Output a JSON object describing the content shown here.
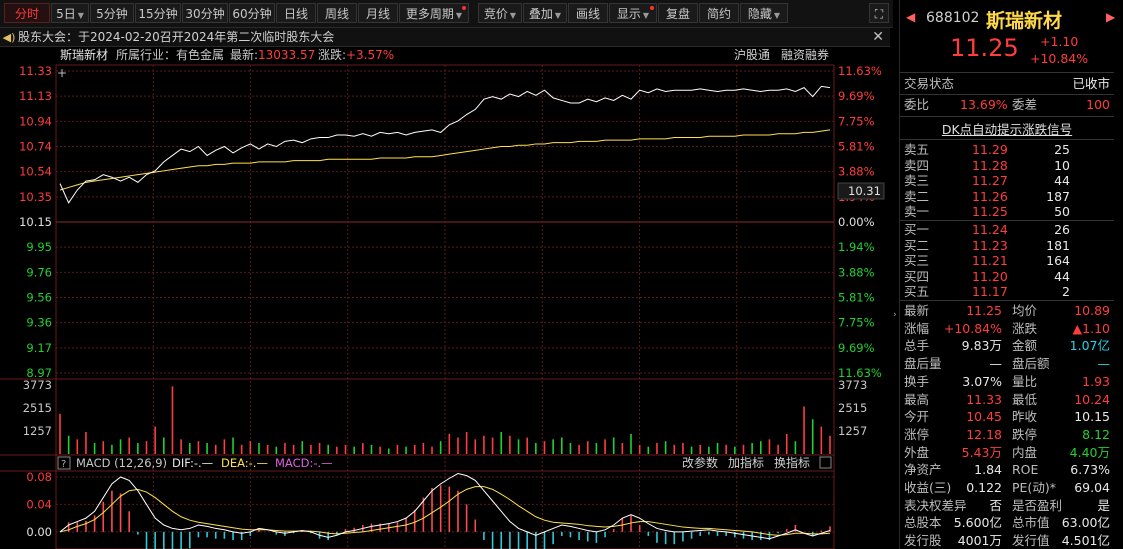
{
  "toolbar": {
    "items": [
      {
        "label": "分时",
        "active": true
      },
      {
        "label": "5日",
        "dropdown": true
      },
      {
        "label": "5分钟"
      },
      {
        "label": "15分钟"
      },
      {
        "label": "30分钟"
      },
      {
        "label": "60分钟"
      },
      {
        "label": "日线"
      },
      {
        "label": "周线"
      },
      {
        "label": "月线"
      },
      {
        "label": "更多周期",
        "dropdown": true,
        "dot": true
      },
      {
        "label": "竞价",
        "dropdown": true
      },
      {
        "label": "叠加",
        "dropdown": true
      },
      {
        "label": "画线"
      },
      {
        "label": "显示",
        "dropdown": true,
        "dot": true
      },
      {
        "label": "复盘"
      },
      {
        "label": "简约"
      },
      {
        "label": "隐藏",
        "dropdown": true
      }
    ],
    "expand_icon": "fullscreen-icon"
  },
  "notice": {
    "text": "股东大会：于2024-02-20召开2024年第二次临时股东大会",
    "icon": "speaker-icon",
    "close_glyph": "✕"
  },
  "chart_header": {
    "name": "斯瑞新材",
    "industry": "所属行业：有色金属",
    "latest_label": "最新:",
    "latest_value": "13033.57",
    "change_label": "涨跌:",
    "change_value": "+3.57%",
    "tag1": "沪股通",
    "tag2": "融资融券"
  },
  "price_axis": {
    "left": [
      "11.33",
      "11.13",
      "10.94",
      "10.74",
      "10.54",
      "10.35",
      "10.15",
      "9.95",
      "9.76",
      "9.56",
      "9.36",
      "9.17",
      "8.97"
    ],
    "right": [
      "11.63%",
      "9.69%",
      "7.75%",
      "5.81%",
      "3.88%",
      "1.94%",
      "0.00%",
      "1.94%",
      "3.88%",
      "5.81%",
      "7.75%",
      "9.69%",
      "11.63%"
    ],
    "cursor_label": "10.31"
  },
  "volume_axis": {
    "left": [
      "3773",
      "2515",
      "1257"
    ],
    "right": [
      "3773",
      "2515",
      "1257"
    ]
  },
  "macd_header": {
    "title": "MACD (12,26,9)",
    "dif": "DIF:-.—",
    "dea": "DEA:-.—",
    "macd": "MACD:-.—",
    "btn_params": "改参数",
    "btn_add": "加指标",
    "btn_switch": "换指标"
  },
  "macd_axis": {
    "labels": [
      "0.08",
      "0.04",
      "0.00"
    ]
  },
  "chart_data": {
    "type": "line",
    "price_range": [
      8.97,
      11.33
    ],
    "prev_close": 10.15,
    "price": [
      10.45,
      10.3,
      10.4,
      10.47,
      10.48,
      10.52,
      10.5,
      10.47,
      10.5,
      10.46,
      10.52,
      10.55,
      10.62,
      10.67,
      10.72,
      10.7,
      10.74,
      10.67,
      10.71,
      10.74,
      10.69,
      10.73,
      10.76,
      10.72,
      10.76,
      10.74,
      10.78,
      10.79,
      10.77,
      10.8,
      10.81,
      10.81,
      10.83,
      10.83,
      10.82,
      10.84,
      10.82,
      10.85,
      10.84,
      10.85,
      10.83,
      10.85,
      10.86,
      10.87,
      10.85,
      10.91,
      10.94,
      10.99,
      11.03,
      11.11,
      11.13,
      11.11,
      11.15,
      11.13,
      11.17,
      11.14,
      11.18,
      11.12,
      11.1,
      11.08,
      11.08,
      11.11,
      11.09,
      11.12,
      11.1,
      11.14,
      11.11,
      11.18,
      11.16,
      11.19,
      11.17,
      11.18,
      11.18,
      11.18,
      11.19,
      11.18,
      11.17,
      11.18,
      11.18,
      11.19,
      11.18,
      11.17,
      11.18,
      11.18,
      11.19,
      11.17,
      11.2,
      11.13,
      11.21,
      11.2
    ],
    "avg": [
      10.4,
      10.42,
      10.44,
      10.46,
      10.47,
      10.48,
      10.49,
      10.5,
      10.51,
      10.52,
      10.53,
      10.54,
      10.55,
      10.56,
      10.57,
      10.58,
      10.59,
      10.59,
      10.6,
      10.6,
      10.61,
      10.61,
      10.61,
      10.62,
      10.62,
      10.62,
      10.62,
      10.63,
      10.63,
      10.63,
      10.63,
      10.64,
      10.64,
      10.64,
      10.64,
      10.64,
      10.64,
      10.65,
      10.65,
      10.65,
      10.65,
      10.66,
      10.66,
      10.66,
      10.67,
      10.68,
      10.69,
      10.7,
      10.71,
      10.72,
      10.73,
      10.74,
      10.74,
      10.75,
      10.75,
      10.76,
      10.76,
      10.77,
      10.77,
      10.77,
      10.78,
      10.78,
      10.78,
      10.79,
      10.79,
      10.79,
      10.79,
      10.8,
      10.8,
      10.8,
      10.8,
      10.81,
      10.81,
      10.81,
      10.81,
      10.82,
      10.82,
      10.82,
      10.82,
      10.83,
      10.83,
      10.83,
      10.83,
      10.84,
      10.84,
      10.84,
      10.85,
      10.85,
      10.86,
      10.87
    ],
    "volume_max": 3773,
    "volume": [
      2200,
      1000,
      800,
      1200,
      600,
      700,
      500,
      800,
      900,
      600,
      700,
      1500,
      900,
      3700,
      800,
      600,
      700,
      600,
      500,
      800,
      900,
      500,
      700,
      600,
      500,
      400,
      600,
      500,
      700,
      500,
      600,
      500,
      400,
      500,
      400,
      600,
      500,
      400,
      300,
      500,
      400,
      500,
      600,
      400,
      700,
      1100,
      900,
      1200,
      800,
      1000,
      900,
      1200,
      1000,
      800,
      900,
      600,
      700,
      800,
      900,
      600,
      500,
      700,
      600,
      800,
      900,
      600,
      1100,
      500,
      400,
      600,
      700,
      500,
      600,
      400,
      500,
      400,
      600,
      500,
      400,
      500,
      600,
      700,
      800,
      500,
      1100,
      700,
      2600,
      1900,
      1500,
      1000
    ],
    "volume_up": [
      true,
      false,
      true,
      true,
      false,
      true,
      false,
      false,
      true,
      false,
      true,
      true,
      false,
      true,
      true,
      false,
      true,
      false,
      true,
      true,
      false,
      true,
      true,
      false,
      true,
      false,
      true,
      true,
      false,
      true,
      true,
      false,
      true,
      true,
      false,
      true,
      false,
      true,
      false,
      true,
      false,
      true,
      true,
      true,
      false,
      true,
      true,
      true,
      true,
      true,
      true,
      false,
      true,
      false,
      true,
      false,
      true,
      false,
      false,
      false,
      true,
      true,
      false,
      true,
      false,
      true,
      false,
      true,
      false,
      true,
      false,
      true,
      true,
      false,
      true,
      false,
      false,
      true,
      false,
      true,
      false,
      false,
      true,
      true,
      true,
      false,
      true,
      false,
      true,
      true
    ],
    "macd_range": [
      -0.025,
      0.08
    ],
    "dif": [
      0.0,
      0.01,
      0.015,
      0.02,
      0.03,
      0.05,
      0.07,
      0.08,
      0.075,
      0.06,
      0.04,
      0.02,
      0.01,
      0.005,
      0.003,
      0.005,
      0.01,
      0.008,
      0.005,
      0.003,
      0.0,
      -0.002,
      0.0,
      0.005,
      0.003,
      0.0,
      -0.002,
      0.0,
      0.002,
      0.0,
      -0.005,
      -0.008,
      -0.005,
      0.0,
      0.002,
      0.005,
      0.008,
      0.01,
      0.012,
      0.015,
      0.02,
      0.03,
      0.045,
      0.06,
      0.07,
      0.078,
      0.085,
      0.082,
      0.075,
      0.06,
      0.045,
      0.03,
      0.015,
      0.005,
      0.0,
      -0.005,
      0.0,
      0.005,
      0.01,
      0.008,
      0.005,
      0.002,
      0.0,
      0.003,
      0.01,
      0.02,
      0.025,
      0.02,
      0.012,
      0.005,
      0.002,
      0.0,
      0.0,
      0.001,
      0.002,
      0.003,
      0.001,
      0.0,
      -0.002,
      -0.004,
      -0.006,
      -0.008,
      -0.01,
      -0.006,
      -0.002,
      0.003,
      -0.002,
      -0.006,
      -0.002,
      0.002
    ],
    "dea": [
      0.0,
      0.003,
      0.008,
      0.012,
      0.018,
      0.028,
      0.04,
      0.052,
      0.06,
      0.062,
      0.058,
      0.05,
      0.04,
      0.03,
      0.022,
      0.017,
      0.014,
      0.012,
      0.01,
      0.008,
      0.006,
      0.004,
      0.003,
      0.003,
      0.003,
      0.002,
      0.001,
      0.001,
      0.001,
      0.001,
      0.0,
      -0.002,
      -0.003,
      -0.002,
      -0.001,
      0.0,
      0.002,
      0.004,
      0.006,
      0.008,
      0.01,
      0.014,
      0.02,
      0.028,
      0.036,
      0.045,
      0.055,
      0.062,
      0.066,
      0.066,
      0.062,
      0.055,
      0.047,
      0.038,
      0.03,
      0.022,
      0.017,
      0.014,
      0.013,
      0.012,
      0.011,
      0.009,
      0.008,
      0.007,
      0.008,
      0.01,
      0.013,
      0.015,
      0.015,
      0.013,
      0.011,
      0.009,
      0.007,
      0.006,
      0.005,
      0.005,
      0.004,
      0.003,
      0.002,
      0.001,
      0.0,
      -0.002,
      -0.004,
      -0.005,
      -0.004,
      -0.002,
      -0.002,
      -0.003,
      -0.003,
      -0.002
    ]
  },
  "panel": {
    "code": "688102",
    "name": "斯瑞新材",
    "price": "11.25",
    "change": "+1.10",
    "change_pct": "+10.84%",
    "status_label": "交易状态",
    "status_value": "已收市",
    "weibi_label": "委比",
    "weibi_value": "13.69%",
    "weicha_label": "委差",
    "weicha_value": "100",
    "signal_title": "DK点自动提示涨跌信号",
    "asks": [
      {
        "label": "卖五",
        "price": "11.29",
        "vol": "25"
      },
      {
        "label": "卖四",
        "price": "11.28",
        "vol": "10"
      },
      {
        "label": "卖三",
        "price": "11.27",
        "vol": "44"
      },
      {
        "label": "卖二",
        "price": "11.26",
        "vol": "187"
      },
      {
        "label": "卖一",
        "price": "11.25",
        "vol": "50"
      }
    ],
    "bids": [
      {
        "label": "买一",
        "price": "11.24",
        "vol": "26"
      },
      {
        "label": "买二",
        "price": "11.23",
        "vol": "181"
      },
      {
        "label": "买三",
        "price": "11.21",
        "vol": "164"
      },
      {
        "label": "买四",
        "price": "11.20",
        "vol": "44"
      },
      {
        "label": "买五",
        "price": "11.17",
        "vol": "2"
      }
    ],
    "stats": [
      [
        {
          "l": "最新",
          "v": "11.25",
          "c": "red"
        },
        {
          "l": "均价",
          "v": "10.89",
          "c": "red"
        }
      ],
      [
        {
          "l": "涨幅",
          "v": "+10.84%",
          "c": "red"
        },
        {
          "l": "涨跌",
          "v": "▲1.10",
          "c": "red"
        }
      ],
      [
        {
          "l": "总手",
          "v": "9.83万",
          "c": "wht"
        },
        {
          "l": "金额",
          "v": "1.07亿",
          "c": "cyn"
        }
      ],
      [
        {
          "l": "盘后量",
          "v": "—",
          "c": "wht"
        },
        {
          "l": "盘后额",
          "v": "—",
          "c": "cyn"
        }
      ],
      [
        {
          "l": "换手",
          "v": "3.07%",
          "c": "wht"
        },
        {
          "l": "量比",
          "v": "1.93",
          "c": "red"
        }
      ],
      [
        {
          "l": "最高",
          "v": "11.33",
          "c": "red"
        },
        {
          "l": "最低",
          "v": "10.24",
          "c": "red"
        }
      ],
      [
        {
          "l": "今开",
          "v": "10.45",
          "c": "red"
        },
        {
          "l": "昨收",
          "v": "10.15",
          "c": "wht"
        }
      ],
      [
        {
          "l": "涨停",
          "v": "12.18",
          "c": "red"
        },
        {
          "l": "跌停",
          "v": "8.12",
          "c": "grn"
        }
      ],
      [
        {
          "l": "外盘",
          "v": "5.43万",
          "c": "red"
        },
        {
          "l": "内盘",
          "v": "4.40万",
          "c": "grn"
        }
      ],
      [
        {
          "l": "净资产",
          "v": "1.84",
          "c": "wht"
        },
        {
          "l": "ROE",
          "v": "6.73%",
          "c": "wht"
        }
      ],
      [
        {
          "l": "收益(三)",
          "v": "0.122",
          "c": "wht"
        },
        {
          "l": "PE(动)*",
          "v": "69.04",
          "c": "wht"
        }
      ],
      [
        {
          "l": "表决权差异",
          "v": "否",
          "c": "wht"
        },
        {
          "l": "是否盈利",
          "v": "是",
          "c": "wht"
        }
      ],
      [
        {
          "l": "总股本",
          "v": "5.600亿",
          "c": "wht"
        },
        {
          "l": "总市值",
          "v": "63.00亿",
          "c": "wht"
        }
      ],
      [
        {
          "l": "发行股",
          "v": "4001万",
          "c": "wht"
        },
        {
          "l": "发行值",
          "v": "4.501亿",
          "c": "wht"
        }
      ]
    ]
  },
  "colors": {
    "up": "#ff3d3d",
    "down": "#22d030",
    "price_line": "#ffffff",
    "avg_line": "#ffe14a",
    "macd_pos": "#ff4a4a",
    "macd_neg": "#30c8d8",
    "grid": "#5a1a1a"
  }
}
